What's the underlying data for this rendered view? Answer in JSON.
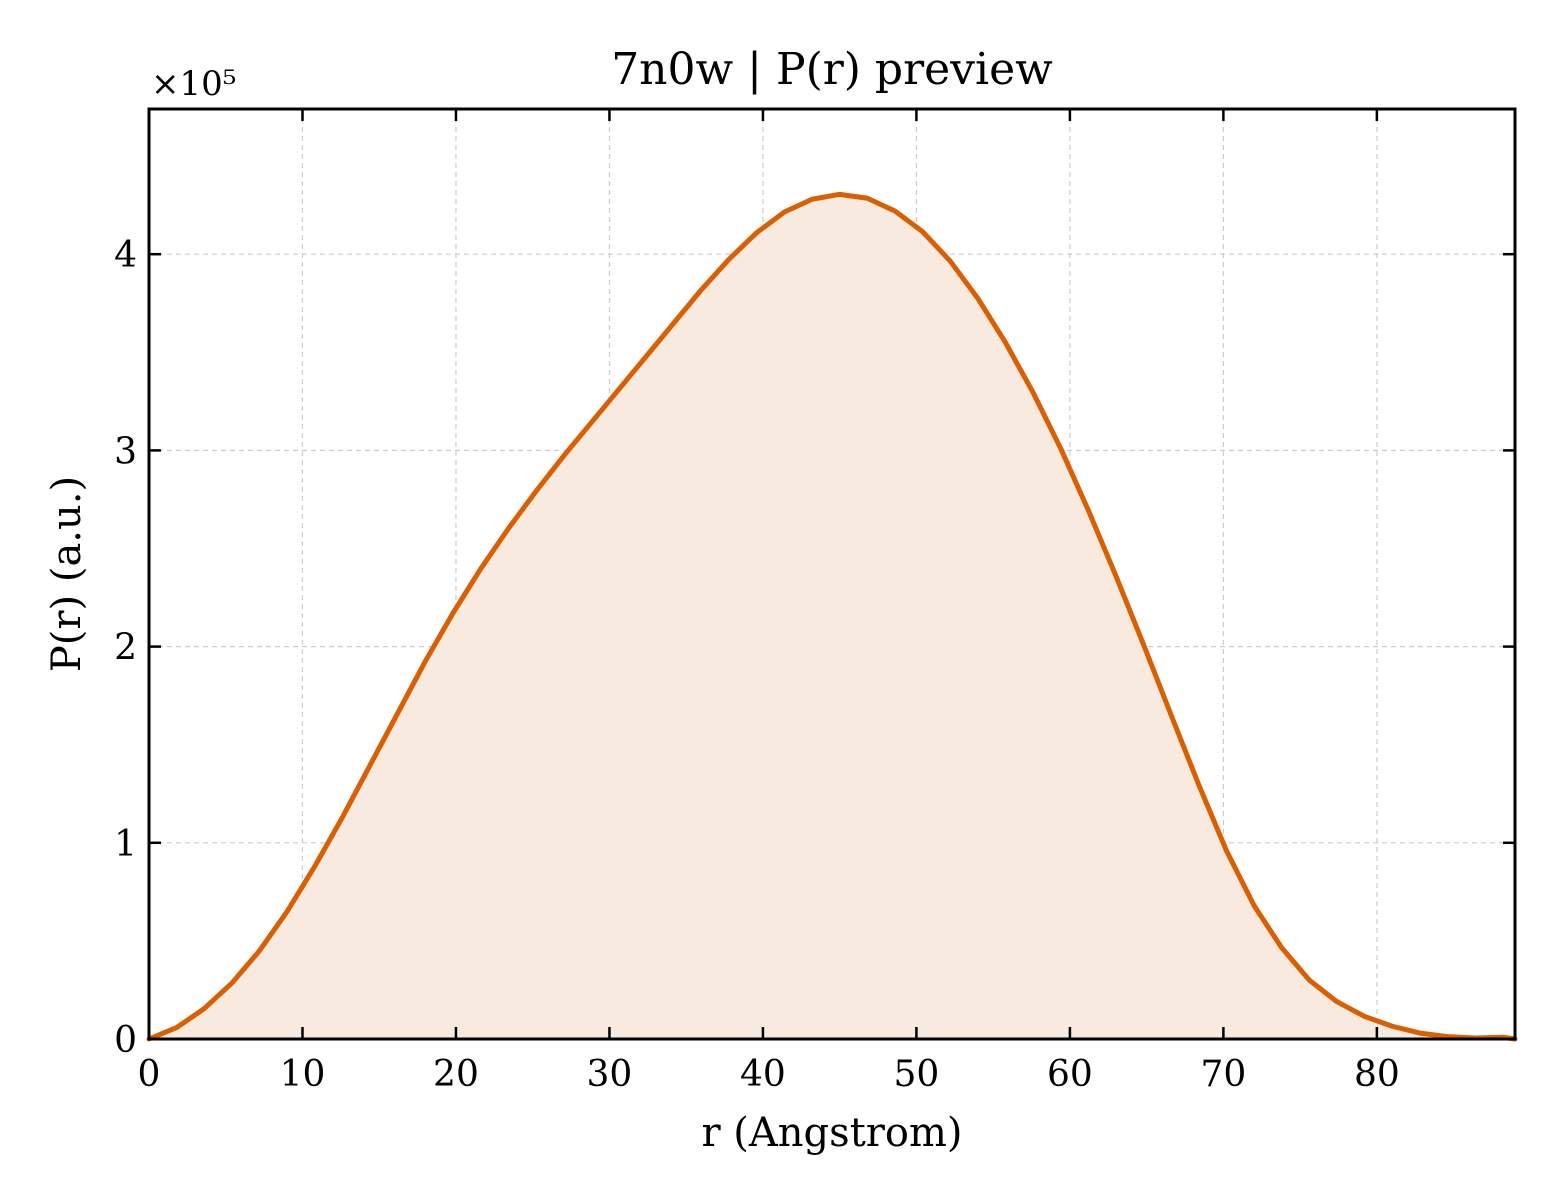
{
  "chart_data": {
    "type": "area",
    "title": "7n0w | P(r) preview",
    "xlabel": "r (Angstrom)",
    "ylabel": "P(r) (a.u.)",
    "y_offset_label": "×10⁵",
    "xlim": [
      0,
      89
    ],
    "ylim": [
      0,
      474000
    ],
    "x_ticks": [
      0,
      10,
      20,
      30,
      40,
      50,
      60,
      70,
      80
    ],
    "y_ticks": [
      0,
      100000,
      200000,
      300000,
      400000
    ],
    "y_tick_labels": [
      "0",
      "1",
      "2",
      "3",
      "4"
    ],
    "grid": true,
    "series": [
      {
        "line_color": "#d95f02",
        "fill_color": "#f8eadf",
        "x": [
          0,
          1.8,
          3.6,
          5.4,
          7.2,
          9.0,
          10.8,
          12.6,
          14.4,
          16.2,
          18.0,
          19.8,
          21.6,
          23.4,
          25.2,
          27.0,
          28.8,
          30.6,
          32.4,
          34.2,
          36.0,
          37.8,
          39.6,
          41.4,
          43.2,
          45.0,
          46.8,
          48.6,
          50.4,
          52.2,
          54.0,
          55.8,
          57.6,
          59.4,
          61.2,
          63.0,
          64.8,
          66.6,
          68.4,
          70.2,
          72.0,
          73.8,
          75.6,
          77.4,
          79.2,
          81.0,
          82.8,
          84.6,
          86.4,
          88.2,
          89.0
        ],
        "y": [
          0,
          5800,
          15500,
          28500,
          45000,
          65000,
          88000,
          113000,
          139500,
          166000,
          192500,
          217000,
          239500,
          260000,
          279000,
          297000,
          314000,
          331000,
          348000,
          365000,
          382000,
          397500,
          411000,
          421500,
          428000,
          430500,
          428500,
          422000,
          411500,
          396500,
          377500,
          355000,
          329500,
          301000,
          269500,
          236000,
          201000,
          165000,
          129500,
          96000,
          68000,
          46500,
          30000,
          19000,
          11500,
          6500,
          3000,
          1200,
          500,
          900,
          0
        ]
      }
    ]
  }
}
